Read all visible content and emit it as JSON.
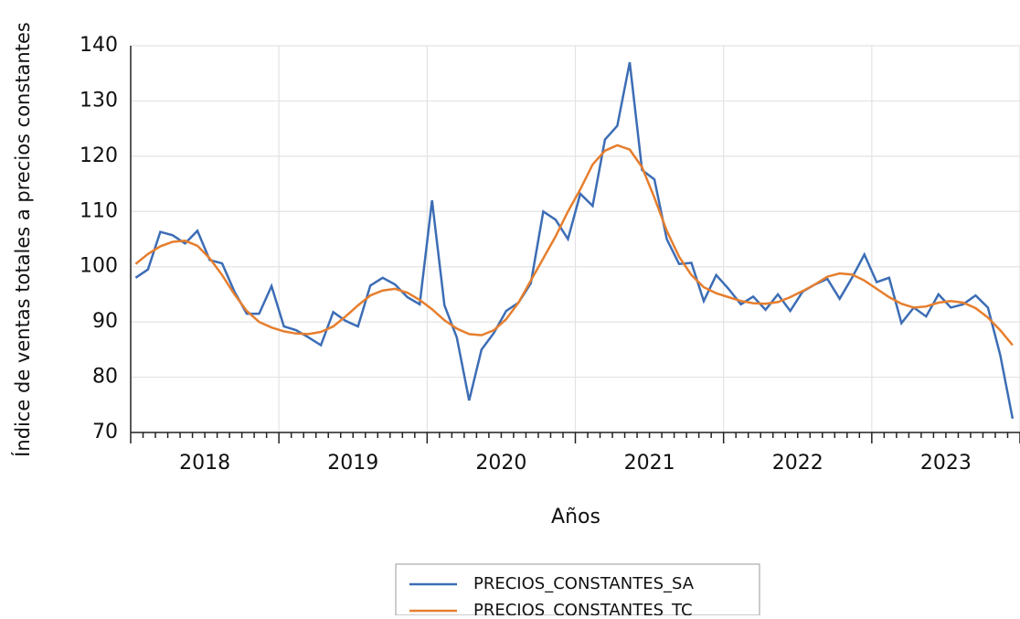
{
  "chart_data": {
    "type": "line",
    "y_label": "Índice de ventas totales a precios constantes",
    "x_label": "Años",
    "categories": [
      null,
      null,
      null,
      null,
      null,
      "2018",
      null,
      null,
      null,
      null,
      null,
      null,
      null,
      null,
      null,
      null,
      null,
      "2019",
      null,
      null,
      null,
      null,
      null,
      null,
      null,
      null,
      null,
      null,
      null,
      "2020",
      null,
      null,
      null,
      null,
      null,
      null,
      null,
      null,
      null,
      null,
      null,
      "2021",
      null,
      null,
      null,
      null,
      null,
      null,
      null,
      null,
      null,
      null,
      null,
      "2022",
      null,
      null,
      null,
      null,
      null,
      null,
      null,
      null,
      null,
      null,
      null,
      "2023",
      null,
      null,
      null,
      null,
      null,
      null
    ],
    "series": [
      {
        "name": "PRECIOS_CONSTANTES_SA",
        "color": "#3c6db5",
        "values": [
          98,
          99.5,
          106.3,
          105.7,
          104.2,
          106.5,
          101.2,
          100.6,
          95.5,
          91.5,
          91.5,
          96.5,
          89.2,
          88.5,
          87.2,
          85.8,
          91.8,
          90.2,
          89.2,
          96.6,
          98,
          96.8,
          94.5,
          93.2,
          112,
          93,
          87.2,
          75.8,
          85,
          88,
          92,
          93.5,
          97,
          110,
          108.5,
          105,
          113.2,
          111,
          123,
          125.5,
          137,
          117.5,
          115.8,
          105,
          100.5,
          100.7,
          93.8,
          98.5,
          96,
          93.2,
          94.6,
          92.2,
          95,
          92,
          95.5,
          96.8,
          97.8,
          94.2,
          98,
          102.2,
          97.2,
          98,
          89.8,
          92.6,
          91,
          95,
          92.6,
          93.2,
          94.8,
          92.6,
          84,
          72.5
        ]
      },
      {
        "name": "PRECIOS_CONSTANTES_TC",
        "color": "#e67e2e",
        "values": [
          100.5,
          102.3,
          103.7,
          104.5,
          104.7,
          103.8,
          101.5,
          98.5,
          95,
          92,
          90,
          89,
          88.3,
          87.9,
          87.8,
          88.2,
          89.2,
          91,
          93,
          94.8,
          95.7,
          96,
          95.3,
          94,
          92.3,
          90.3,
          88.8,
          87.8,
          87.6,
          88.5,
          90.5,
          93.5,
          97.5,
          101.5,
          105.5,
          110,
          114,
          118.5,
          121,
          122,
          121.2,
          118,
          112.5,
          106.5,
          101.8,
          98.5,
          96.3,
          95.2,
          94.5,
          93.8,
          93.4,
          93.3,
          93.6,
          94.5,
          95.6,
          96.8,
          98.2,
          98.8,
          98.6,
          97.5,
          96,
          94.5,
          93.3,
          92.6,
          92.8,
          93.5,
          93.8,
          93.5,
          92.5,
          90.8,
          88.5,
          85.8
        ]
      }
    ],
    "ylim": [
      70,
      140
    ],
    "yticks": [
      70,
      80,
      90,
      100,
      110,
      120,
      130,
      140
    ],
    "grid": true
  }
}
